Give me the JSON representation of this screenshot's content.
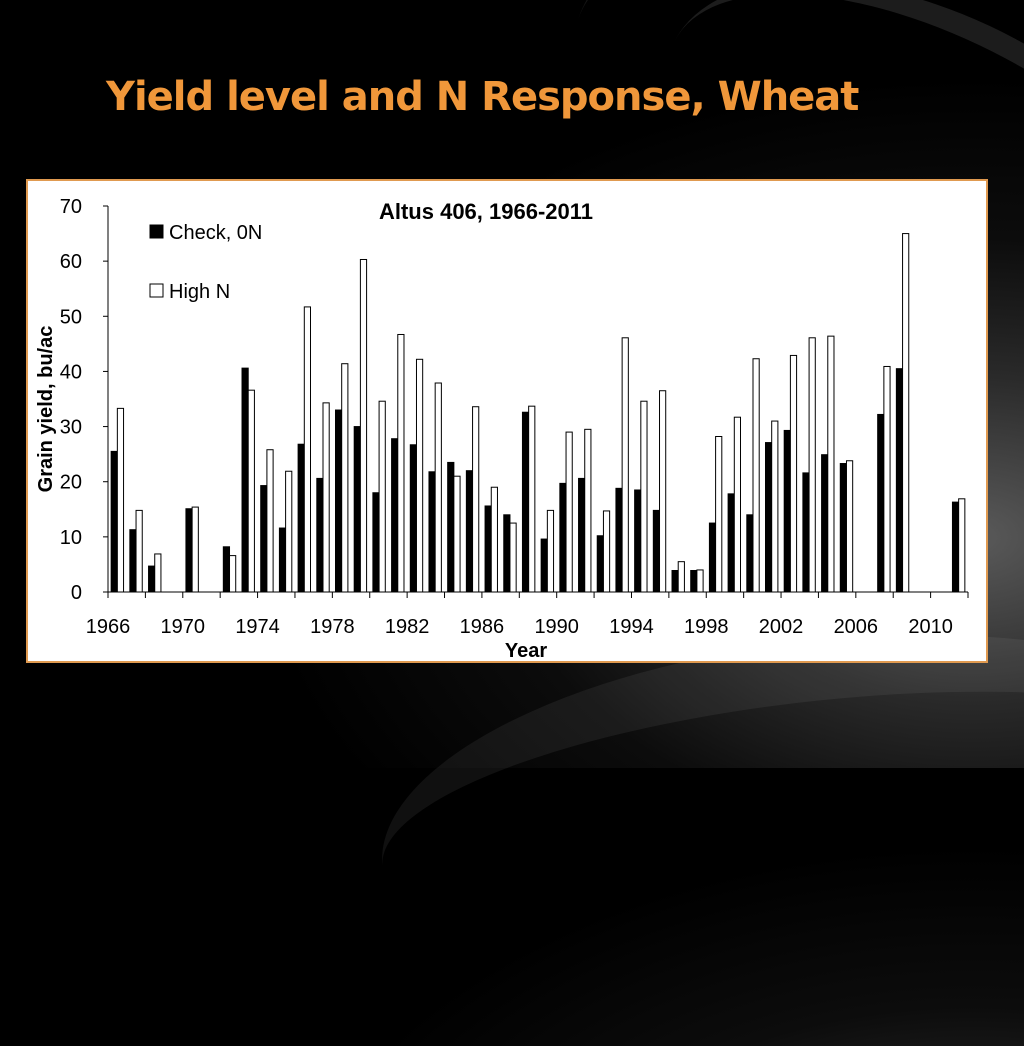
{
  "slide": {
    "title": "Yield level and N Response, Wheat"
  },
  "colors": {
    "title": "#F0973A",
    "frame": "#E09A50",
    "check": "#000000",
    "high_n": "#FFFFFF"
  },
  "chart_data": {
    "type": "bar",
    "title": "Altus 406, 1966-2011",
    "xlabel": "Year",
    "ylabel": "Grain yield, bu/ac",
    "ylim": [
      0,
      70
    ],
    "y_ticks": [
      0,
      10,
      20,
      30,
      40,
      50,
      60,
      70
    ],
    "x_tick_labels": [
      "1966",
      "1970",
      "1974",
      "1978",
      "1982",
      "1986",
      "1990",
      "1994",
      "1998",
      "2002",
      "2006",
      "2010"
    ],
    "legend_position": "top-left",
    "categories": [
      1966,
      1967,
      1968,
      1969,
      1970,
      1971,
      1972,
      1973,
      1974,
      1975,
      1976,
      1977,
      1978,
      1979,
      1980,
      1981,
      1982,
      1983,
      1984,
      1985,
      1986,
      1987,
      1988,
      1989,
      1990,
      1991,
      1992,
      1993,
      1994,
      1995,
      1996,
      1997,
      1998,
      1999,
      2000,
      2001,
      2002,
      2003,
      2004,
      2005,
      2006,
      2007,
      2008,
      2009,
      2010,
      2011
    ],
    "series": [
      {
        "name": "Check, 0N",
        "color": "#000000",
        "values": [
          25.5,
          11.3,
          4.7,
          null,
          15.1,
          null,
          8.2,
          40.6,
          19.3,
          11.6,
          26.8,
          20.6,
          33.0,
          30.0,
          18.0,
          27.8,
          26.7,
          21.8,
          23.5,
          22.0,
          15.6,
          14.0,
          32.6,
          9.6,
          19.7,
          20.6,
          10.2,
          18.8,
          18.5,
          14.8,
          3.9,
          3.9,
          12.5,
          17.8,
          14.0,
          27.1,
          29.3,
          21.6,
          24.9,
          23.3,
          null,
          32.2,
          40.5,
          null,
          null,
          16.3
        ]
      },
      {
        "name": "High N",
        "color": "#FFFFFF",
        "values": [
          33.3,
          14.8,
          6.9,
          null,
          15.4,
          null,
          6.6,
          36.6,
          25.8,
          21.9,
          51.7,
          34.3,
          41.4,
          60.3,
          34.6,
          46.7,
          42.2,
          37.9,
          21.0,
          33.6,
          19.0,
          12.5,
          33.7,
          14.8,
          29.0,
          29.5,
          14.7,
          46.1,
          34.6,
          36.5,
          5.5,
          4.0,
          28.2,
          31.7,
          42.3,
          31.0,
          42.9,
          46.1,
          46.4,
          23.8,
          null,
          40.9,
          65.0,
          null,
          null,
          16.9
        ]
      }
    ]
  }
}
